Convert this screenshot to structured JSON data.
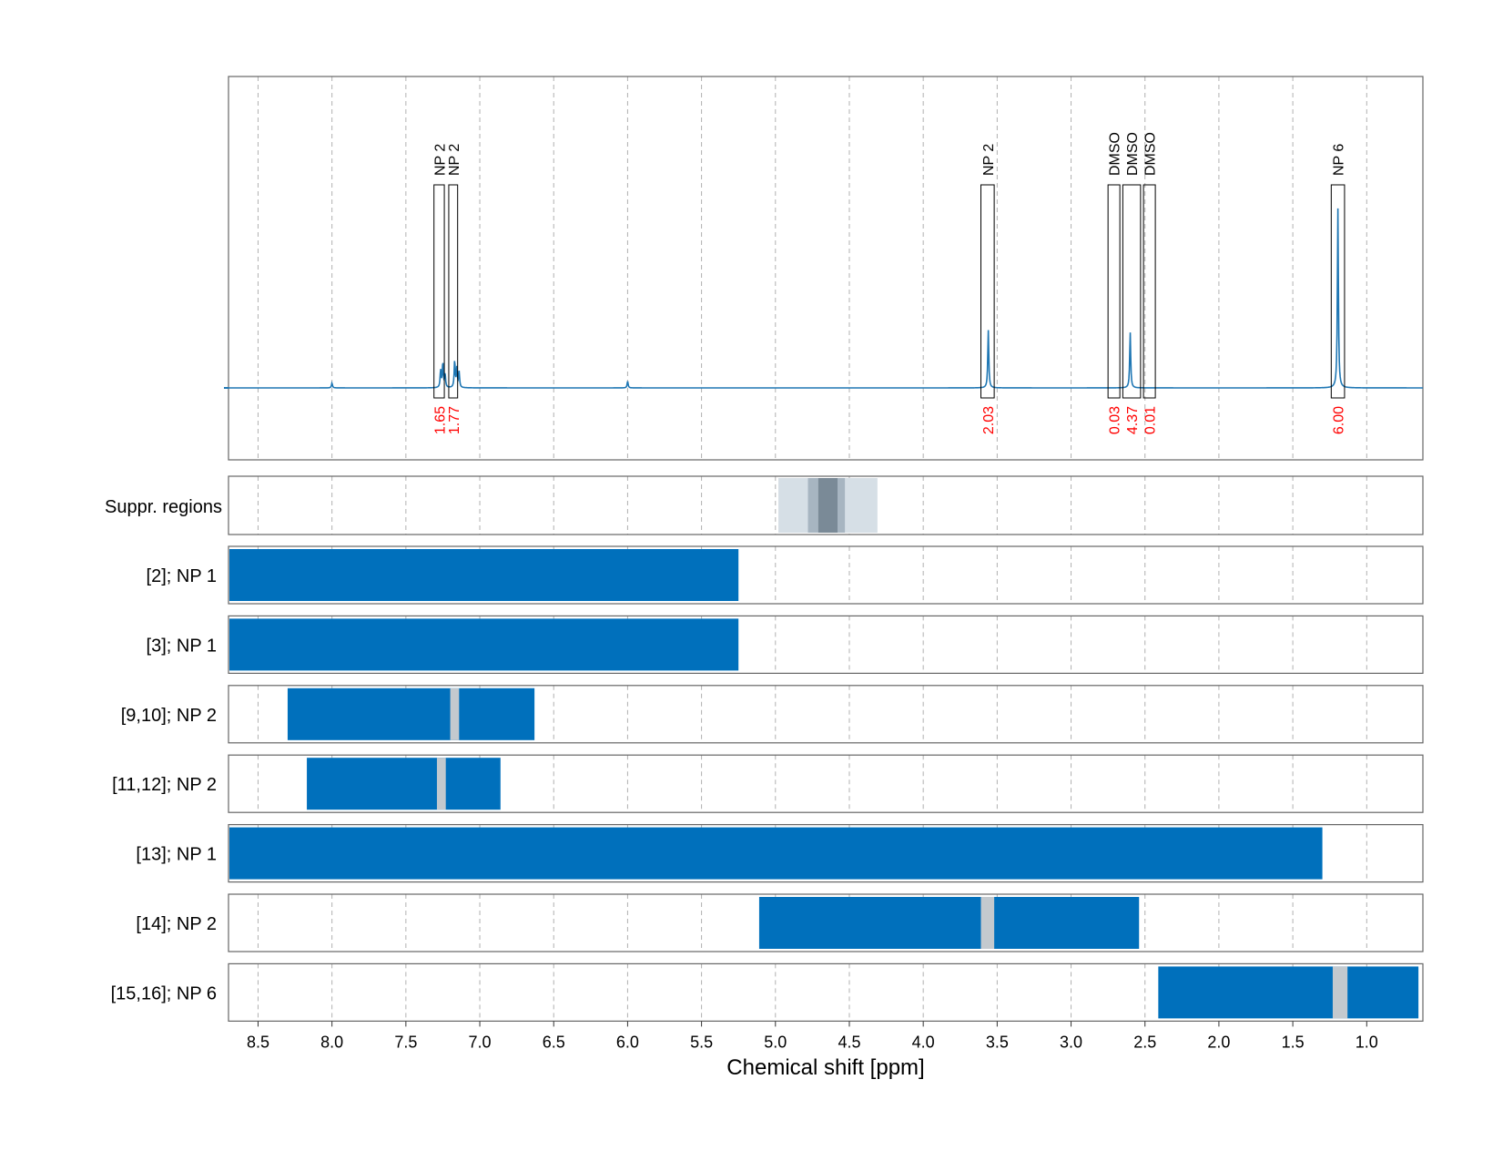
{
  "chart_data": {
    "type": "nmr-spectrum",
    "xlabel": "Chemical shift [ppm]",
    "xlim": [
      8.7,
      0.62
    ],
    "x_ticks": [
      8.5,
      8.0,
      7.5,
      7.0,
      6.5,
      6.0,
      5.5,
      5.0,
      4.5,
      4.0,
      3.5,
      3.0,
      2.5,
      2.0,
      1.5,
      1.0
    ],
    "x_tick_labels": [
      "8.5",
      "8.0",
      "7.5",
      "7.0",
      "6.5",
      "6.0",
      "5.5",
      "5.0",
      "4.5",
      "4.0",
      "3.5",
      "3.0",
      "2.5",
      "2.0",
      "1.5",
      "1.0"
    ],
    "grid": true,
    "spectrum": {
      "color": "#1f77b4",
      "peaks": [
        {
          "ppm": 8.0,
          "height": 0.025
        },
        {
          "ppm": 7.265,
          "height": 0.09
        },
        {
          "ppm": 7.25,
          "height": 0.13
        },
        {
          "ppm": 7.235,
          "height": 0.07
        },
        {
          "ppm": 7.17,
          "height": 0.14
        },
        {
          "ppm": 7.155,
          "height": 0.1
        },
        {
          "ppm": 7.14,
          "height": 0.08
        },
        {
          "ppm": 6.0,
          "height": 0.035
        },
        {
          "ppm": 3.56,
          "height": 0.3
        },
        {
          "ppm": 2.6,
          "height": 0.29
        },
        {
          "ppm": 1.195,
          "height": 0.93
        }
      ]
    },
    "peak_annotations": [
      {
        "label": "NP 2",
        "integral": "1.65",
        "ppm_left": 7.31,
        "ppm_right": 7.24
      },
      {
        "label": "NP 2",
        "integral": "1.77",
        "ppm_left": 7.21,
        "ppm_right": 7.15
      },
      {
        "label": "NP 2",
        "integral": "2.03",
        "ppm_left": 3.61,
        "ppm_right": 3.52
      },
      {
        "label": "DMSO",
        "integral": "0.03",
        "ppm_left": 2.75,
        "ppm_right": 2.67
      },
      {
        "label": "DMSO",
        "integral": "4.37",
        "ppm_left": 2.65,
        "ppm_right": 2.53
      },
      {
        "label": "DMSO",
        "integral": "0.01",
        "ppm_left": 2.51,
        "ppm_right": 2.43
      },
      {
        "label": "NP 6",
        "integral": "6.00",
        "ppm_left": 1.24,
        "ppm_right": 1.15
      }
    ],
    "suppressed_regions": {
      "label": "Suppr. regions",
      "bands": [
        {
          "from": 4.98,
          "to": 4.31,
          "color": "#d6dfe6"
        },
        {
          "from": 4.78,
          "to": 4.53,
          "color": "#a7b5c1"
        },
        {
          "from": 4.71,
          "to": 4.58,
          "color": "#7a8a97"
        }
      ]
    },
    "tracks": [
      {
        "label": "[2]; NP 1",
        "from": 8.7,
        "to": 5.25,
        "gap": null
      },
      {
        "label": "[3]; NP 1",
        "from": 8.7,
        "to": 5.25,
        "gap": null
      },
      {
        "label": "[9,10]; NP 2",
        "from": 8.3,
        "to": 6.63,
        "gap": [
          7.2,
          7.14
        ]
      },
      {
        "label": "[11,12]; NP 2",
        "from": 8.17,
        "to": 6.86,
        "gap": [
          7.29,
          7.23
        ]
      },
      {
        "label": "[13]; NP 1",
        "from": 8.7,
        "to": 1.3,
        "gap": null
      },
      {
        "label": "[14]; NP 2",
        "from": 5.11,
        "to": 2.54,
        "gap": [
          3.61,
          3.52
        ]
      },
      {
        "label": "[15,16]; NP 6",
        "from": 2.41,
        "to": 0.65,
        "gap": [
          1.23,
          1.13
        ]
      }
    ],
    "colors": {
      "bar": "#0070bc",
      "gap": "#c3c9ce",
      "integral_text": "#ff0000",
      "grid": "#b0b0b0",
      "frame": "#666666"
    }
  }
}
